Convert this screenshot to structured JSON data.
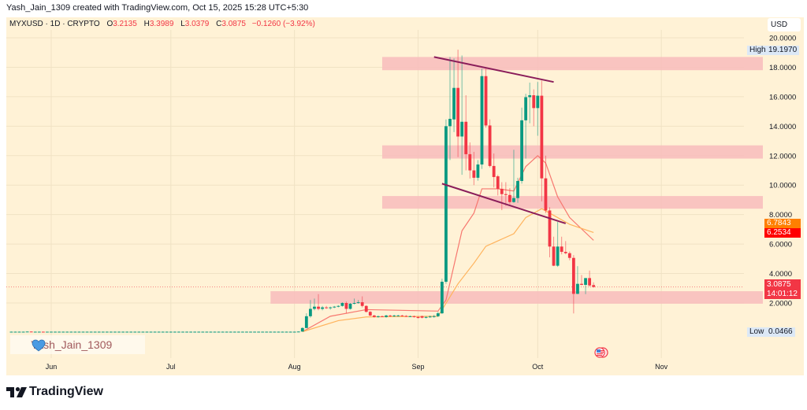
{
  "header": {
    "created_by": "Yash_Jain_1309 created with TradingView.com, Oct 15, 2025 15:28 UTC+5:30"
  },
  "legend": {
    "symbol": "MYXUSD · 1D · CRYPTO",
    "o_label": "O",
    "o": "3.2135",
    "h_label": "H",
    "h": "3.3989",
    "l_label": "L",
    "l": "3.0379",
    "c_label": "C",
    "c": "3.0875",
    "change": "−0.1260 (−3.92%)"
  },
  "axis": {
    "currency": "USD"
  },
  "badges": {
    "high_label": "High",
    "high_value": "19.1970",
    "low_label": "Low",
    "low_value": "0.0466",
    "ma_orange": "6.7843",
    "ma_red": "6.2534",
    "last_price": "3.0875",
    "countdown": "14:01:12"
  },
  "watermark": {
    "text": "Yash_Jain_1309",
    "icon": "blue-heart-icon"
  },
  "events_icon": "us-flag-icon",
  "brand": {
    "name": "TradingView"
  },
  "colors": {
    "bull": "#089981",
    "bear": "#f23645",
    "ma_fast": "#f7776f",
    "ma_slow": "#ffb35c",
    "zone": "#f8bcbc",
    "trendline": "#8a1d5a",
    "background": "#fff2d6"
  },
  "chart_data": {
    "type": "candlestick",
    "symbol": "MYXUSD",
    "interval": "1D",
    "ylim": [
      0,
      20.6
    ],
    "y_ticks": [
      "2.0000",
      "4.0000",
      "6.0000",
      "8.0000",
      "10.0000",
      "12.0000",
      "14.0000",
      "16.0000",
      "18.0000",
      "20.0000"
    ],
    "x_ticks": [
      {
        "label": "Jun",
        "date": "2025-06-01"
      },
      {
        "label": "Jul",
        "date": "2025-07-01"
      },
      {
        "label": "Aug",
        "date": "2025-08-01"
      },
      {
        "label": "Sep",
        "date": "2025-09-01"
      },
      {
        "label": "Oct",
        "date": "2025-10-01"
      },
      {
        "label": "Nov",
        "date": "2025-11-01"
      }
    ],
    "grid": true,
    "ohlc": [
      [
        "2025-05-22",
        0.05,
        0.06,
        0.04,
        0.05
      ],
      [
        "2025-05-23",
        0.05,
        0.06,
        0.04,
        0.05
      ],
      [
        "2025-05-24",
        0.05,
        0.06,
        0.05,
        0.05
      ],
      [
        "2025-05-25",
        0.05,
        0.06,
        0.04,
        0.05
      ],
      [
        "2025-05-26",
        0.05,
        0.06,
        0.04,
        0.06
      ],
      [
        "2025-05-27",
        0.06,
        0.07,
        0.05,
        0.05
      ],
      [
        "2025-05-28",
        0.05,
        0.06,
        0.04,
        0.05
      ],
      [
        "2025-05-29",
        0.05,
        0.06,
        0.04,
        0.05
      ],
      [
        "2025-05-30",
        0.05,
        0.06,
        0.04,
        0.04
      ],
      [
        "2025-05-31",
        0.04,
        0.05,
        0.04,
        0.05
      ],
      [
        "2025-06-01",
        0.05,
        0.06,
        0.04,
        0.05
      ],
      [
        "2025-06-02",
        0.05,
        0.06,
        0.04,
        0.05
      ],
      [
        "2025-06-03",
        0.05,
        0.06,
        0.04,
        0.05
      ],
      [
        "2025-06-04",
        0.05,
        0.06,
        0.05,
        0.05
      ],
      [
        "2025-06-05",
        0.05,
        0.06,
        0.04,
        0.05
      ],
      [
        "2025-06-06",
        0.05,
        0.06,
        0.04,
        0.05
      ],
      [
        "2025-06-07",
        0.05,
        0.06,
        0.04,
        0.05
      ],
      [
        "2025-06-08",
        0.05,
        0.06,
        0.04,
        0.05
      ],
      [
        "2025-06-09",
        0.05,
        0.06,
        0.04,
        0.05
      ],
      [
        "2025-06-10",
        0.05,
        0.06,
        0.04,
        0.05
      ],
      [
        "2025-06-11",
        0.05,
        0.06,
        0.04,
        0.05
      ],
      [
        "2025-06-12",
        0.05,
        0.06,
        0.04,
        0.05
      ],
      [
        "2025-06-13",
        0.05,
        0.06,
        0.04,
        0.05
      ],
      [
        "2025-06-14",
        0.05,
        0.06,
        0.04,
        0.05
      ],
      [
        "2025-06-15",
        0.05,
        0.06,
        0.04,
        0.05
      ],
      [
        "2025-06-16",
        0.05,
        0.06,
        0.04,
        0.05
      ],
      [
        "2025-06-17",
        0.05,
        0.06,
        0.04,
        0.05
      ],
      [
        "2025-06-18",
        0.05,
        0.06,
        0.04,
        0.05
      ],
      [
        "2025-06-19",
        0.05,
        0.06,
        0.04,
        0.05
      ],
      [
        "2025-06-20",
        0.05,
        0.06,
        0.04,
        0.05
      ],
      [
        "2025-06-21",
        0.05,
        0.06,
        0.04,
        0.05
      ],
      [
        "2025-06-22",
        0.05,
        0.06,
        0.04,
        0.05
      ],
      [
        "2025-06-23",
        0.05,
        0.06,
        0.04,
        0.05
      ],
      [
        "2025-06-24",
        0.05,
        0.06,
        0.04,
        0.05
      ],
      [
        "2025-06-25",
        0.05,
        0.06,
        0.04,
        0.05
      ],
      [
        "2025-06-26",
        0.05,
        0.06,
        0.04,
        0.05
      ],
      [
        "2025-06-27",
        0.05,
        0.06,
        0.04,
        0.05
      ],
      [
        "2025-06-28",
        0.05,
        0.06,
        0.04,
        0.05
      ],
      [
        "2025-06-29",
        0.05,
        0.06,
        0.04,
        0.05
      ],
      [
        "2025-06-30",
        0.05,
        0.06,
        0.04,
        0.05
      ],
      [
        "2025-07-01",
        0.05,
        0.06,
        0.04,
        0.05
      ],
      [
        "2025-07-02",
        0.05,
        0.06,
        0.04,
        0.05
      ],
      [
        "2025-07-03",
        0.05,
        0.06,
        0.04,
        0.05
      ],
      [
        "2025-07-04",
        0.05,
        0.06,
        0.04,
        0.05
      ],
      [
        "2025-07-05",
        0.05,
        0.06,
        0.04,
        0.05
      ],
      [
        "2025-07-06",
        0.05,
        0.06,
        0.04,
        0.05
      ],
      [
        "2025-07-07",
        0.05,
        0.06,
        0.04,
        0.05
      ],
      [
        "2025-07-08",
        0.05,
        0.06,
        0.04,
        0.05
      ],
      [
        "2025-07-09",
        0.05,
        0.06,
        0.04,
        0.05
      ],
      [
        "2025-07-10",
        0.05,
        0.06,
        0.04,
        0.05
      ],
      [
        "2025-07-11",
        0.05,
        0.06,
        0.04,
        0.05
      ],
      [
        "2025-07-12",
        0.05,
        0.06,
        0.04,
        0.05
      ],
      [
        "2025-07-13",
        0.05,
        0.06,
        0.04,
        0.05
      ],
      [
        "2025-07-14",
        0.05,
        0.06,
        0.04,
        0.05
      ],
      [
        "2025-07-15",
        0.05,
        0.06,
        0.04,
        0.05
      ],
      [
        "2025-07-16",
        0.05,
        0.06,
        0.04,
        0.05
      ],
      [
        "2025-07-17",
        0.05,
        0.06,
        0.04,
        0.05
      ],
      [
        "2025-07-18",
        0.05,
        0.06,
        0.04,
        0.05
      ],
      [
        "2025-07-19",
        0.05,
        0.06,
        0.04,
        0.05
      ],
      [
        "2025-07-20",
        0.05,
        0.06,
        0.04,
        0.05
      ],
      [
        "2025-07-21",
        0.05,
        0.06,
        0.04,
        0.05
      ],
      [
        "2025-07-22",
        0.05,
        0.06,
        0.04,
        0.05
      ],
      [
        "2025-07-23",
        0.05,
        0.06,
        0.04,
        0.05
      ],
      [
        "2025-07-24",
        0.05,
        0.06,
        0.04,
        0.05
      ],
      [
        "2025-07-25",
        0.05,
        0.06,
        0.04,
        0.05
      ],
      [
        "2025-07-26",
        0.05,
        0.06,
        0.04,
        0.05
      ],
      [
        "2025-07-27",
        0.05,
        0.06,
        0.04,
        0.05
      ],
      [
        "2025-07-28",
        0.05,
        0.06,
        0.04,
        0.05
      ],
      [
        "2025-07-29",
        0.05,
        0.06,
        0.04,
        0.05
      ],
      [
        "2025-07-30",
        0.05,
        0.06,
        0.04,
        0.05
      ],
      [
        "2025-07-31",
        0.05,
        0.06,
        0.04,
        0.05
      ],
      [
        "2025-08-01",
        0.05,
        0.06,
        0.04,
        0.05
      ],
      [
        "2025-08-02",
        0.05,
        0.07,
        0.05,
        0.06
      ],
      [
        "2025-08-03",
        0.06,
        0.35,
        0.05,
        0.3
      ],
      [
        "2025-08-04",
        0.3,
        1.3,
        0.3,
        1.1
      ],
      [
        "2025-08-05",
        1.1,
        2.2,
        1.0,
        1.6
      ],
      [
        "2025-08-06",
        1.6,
        2.3,
        1.5,
        1.75
      ],
      [
        "2025-08-07",
        1.75,
        2.6,
        1.5,
        1.6
      ],
      [
        "2025-08-08",
        1.6,
        1.8,
        1.5,
        1.7
      ],
      [
        "2025-08-09",
        1.7,
        1.8,
        1.6,
        1.65
      ],
      [
        "2025-08-10",
        1.65,
        1.75,
        1.55,
        1.7
      ],
      [
        "2025-08-11",
        1.7,
        1.8,
        1.65,
        1.75
      ],
      [
        "2025-08-12",
        1.75,
        1.85,
        1.7,
        1.8
      ],
      [
        "2025-08-13",
        1.8,
        2.05,
        1.75,
        2.0
      ],
      [
        "2025-08-14",
        2.0,
        2.1,
        1.3,
        1.6
      ],
      [
        "2025-08-15",
        1.6,
        2.0,
        1.55,
        1.95
      ],
      [
        "2025-08-16",
        1.95,
        2.3,
        1.9,
        2.0
      ],
      [
        "2025-08-17",
        2.0,
        2.2,
        1.95,
        2.05
      ],
      [
        "2025-08-18",
        2.05,
        2.45,
        1.7,
        1.8
      ],
      [
        "2025-08-19",
        1.8,
        1.85,
        1.35,
        1.4
      ],
      [
        "2025-08-20",
        1.4,
        1.45,
        1.1,
        1.15
      ],
      [
        "2025-08-21",
        1.15,
        1.2,
        1.0,
        1.05
      ],
      [
        "2025-08-22",
        1.05,
        1.15,
        1.0,
        1.1
      ],
      [
        "2025-08-23",
        1.1,
        1.15,
        1.05,
        1.05
      ],
      [
        "2025-08-24",
        1.05,
        1.2,
        1.0,
        1.15
      ],
      [
        "2025-08-25",
        1.15,
        1.2,
        1.05,
        1.1
      ],
      [
        "2025-08-26",
        1.1,
        1.2,
        1.05,
        1.15
      ],
      [
        "2025-08-27",
        1.15,
        1.2,
        1.1,
        1.15
      ],
      [
        "2025-08-28",
        1.15,
        1.2,
        1.1,
        1.12
      ],
      [
        "2025-08-29",
        1.12,
        1.18,
        1.05,
        1.1
      ],
      [
        "2025-08-30",
        1.1,
        1.15,
        1.05,
        1.1
      ],
      [
        "2025-08-31",
        1.1,
        1.15,
        1.0,
        1.05
      ],
      [
        "2025-09-01",
        1.05,
        1.1,
        0.95,
        0.98
      ],
      [
        "2025-09-02",
        1.1,
        1.15,
        0.95,
        1.0
      ],
      [
        "2025-09-03",
        1.0,
        1.1,
        0.95,
        1.05
      ],
      [
        "2025-09-04",
        1.05,
        1.15,
        1.0,
        1.08
      ],
      [
        "2025-09-05",
        1.08,
        1.2,
        1.0,
        1.1
      ],
      [
        "2025-09-06",
        1.1,
        1.4,
        1.05,
        1.3
      ],
      [
        "2025-09-07",
        1.3,
        3.65,
        1.25,
        3.44
      ],
      [
        "2025-09-08",
        3.44,
        14.46,
        3.3,
        14.0
      ],
      [
        "2025-09-09",
        14.0,
        18.7,
        11.7,
        14.5
      ],
      [
        "2025-09-10",
        14.46,
        18.6,
        13.6,
        16.6
      ],
      [
        "2025-09-11",
        16.6,
        19.197,
        11.9,
        13.3
      ],
      [
        "2025-09-12",
        13.3,
        18.8,
        10.7,
        14.3
      ],
      [
        "2025-09-13",
        14.3,
        16.1,
        11.0,
        12.1
      ],
      [
        "2025-09-14",
        12.1,
        12.9,
        10.45,
        11.0
      ],
      [
        "2025-09-15",
        11.0,
        12.26,
        10.0,
        10.5
      ],
      [
        "2025-09-16",
        10.5,
        11.7,
        10.3,
        11.4
      ],
      [
        "2025-09-17",
        11.4,
        17.9,
        11.1,
        17.4
      ],
      [
        "2025-09-18",
        17.4,
        17.9,
        13.9,
        14.05
      ],
      [
        "2025-09-19",
        14.05,
        14.46,
        11.2,
        11.3
      ],
      [
        "2025-09-20",
        11.3,
        12.15,
        9.84,
        10.55
      ],
      [
        "2025-09-21",
        10.6,
        10.7,
        9.3,
        9.75
      ],
      [
        "2025-09-22",
        9.75,
        10.2,
        8.3,
        9.39
      ],
      [
        "2025-09-23",
        9.39,
        10.2,
        8.6,
        9.33
      ],
      [
        "2025-09-24",
        9.33,
        9.8,
        8.7,
        8.85
      ],
      [
        "2025-09-25",
        8.85,
        12.4,
        8.8,
        9.12
      ],
      [
        "2025-09-26",
        9.12,
        10.5,
        8.8,
        10.28
      ],
      [
        "2025-09-27",
        10.28,
        15.26,
        10.1,
        14.4
      ],
      [
        "2025-09-28",
        14.4,
        16.2,
        11.8,
        15.97
      ],
      [
        "2025-09-29",
        15.97,
        16.96,
        14.2,
        16.1
      ],
      [
        "2025-09-30",
        16.1,
        16.5,
        14.0,
        15.23
      ],
      [
        "2025-10-01",
        15.23,
        17.0,
        13.35,
        16.07
      ],
      [
        "2025-10-02",
        16.07,
        17.1,
        8.9,
        10.46
      ],
      [
        "2025-10-03",
        10.46,
        12.0,
        8.1,
        8.28
      ],
      [
        "2025-10-04",
        8.28,
        8.5,
        5.1,
        5.83
      ],
      [
        "2025-10-05",
        5.83,
        6.5,
        4.5,
        4.53
      ],
      [
        "2025-10-06",
        4.53,
        7.5,
        4.45,
        5.83
      ],
      [
        "2025-10-07",
        5.83,
        6.5,
        5.3,
        5.47
      ],
      [
        "2025-10-08",
        5.47,
        6.2,
        5.3,
        5.38
      ],
      [
        "2025-10-09",
        5.38,
        5.5,
        4.9,
        5.06
      ],
      [
        "2025-10-10",
        5.06,
        5.25,
        1.29,
        2.62
      ],
      [
        "2025-10-11",
        2.62,
        4.5,
        2.6,
        3.3
      ],
      [
        "2025-10-12",
        3.3,
        3.9,
        3.2,
        3.23
      ],
      [
        "2025-10-13",
        3.23,
        3.69,
        2.6,
        3.69
      ],
      [
        "2025-10-14",
        3.69,
        4.2,
        3.1,
        3.19
      ],
      [
        "2025-10-15",
        3.2135,
        3.3989,
        3.0379,
        3.0875
      ]
    ],
    "moving_averages": [
      {
        "color": "#f7776f",
        "last": 6.2534,
        "points": [
          [
            "2025-08-03",
            0.05
          ],
          [
            "2025-08-10",
            1.1
          ],
          [
            "2025-08-19",
            1.55
          ],
          [
            "2025-09-06",
            1.45
          ],
          [
            "2025-09-08",
            2.2
          ],
          [
            "2025-09-12",
            6.9
          ],
          [
            "2025-09-15",
            8.1
          ],
          [
            "2025-09-17",
            9.75
          ],
          [
            "2025-09-21",
            9.75
          ],
          [
            "2025-09-25",
            9.6
          ],
          [
            "2025-09-28",
            11.26
          ],
          [
            "2025-10-01",
            12.0
          ],
          [
            "2025-10-03",
            11.5
          ],
          [
            "2025-10-06",
            9.2
          ],
          [
            "2025-10-09",
            7.8
          ],
          [
            "2025-10-15",
            6.2534
          ]
        ]
      },
      {
        "color": "#ffb35c",
        "last": 6.7843,
        "points": [
          [
            "2025-08-03",
            0.05
          ],
          [
            "2025-08-12",
            0.8
          ],
          [
            "2025-08-19",
            1.05
          ],
          [
            "2025-09-06",
            1.1
          ],
          [
            "2025-09-11",
            3.3
          ],
          [
            "2025-09-15",
            4.7
          ],
          [
            "2025-09-18",
            5.85
          ],
          [
            "2025-09-25",
            6.7
          ],
          [
            "2025-09-28",
            7.8
          ],
          [
            "2025-10-02",
            8.4
          ],
          [
            "2025-10-04",
            8.1
          ],
          [
            "2025-10-09",
            7.34
          ],
          [
            "2025-10-15",
            6.7843
          ]
        ]
      }
    ],
    "zones": [
      {
        "from": "2025-08-23",
        "low": 17.8,
        "high": 18.7
      },
      {
        "from": "2025-08-23",
        "low": 11.8,
        "high": 12.7
      },
      {
        "from": "2025-08-23",
        "low": 8.4,
        "high": 9.26
      },
      {
        "from": "2025-07-26",
        "low": 1.95,
        "high": 2.8
      }
    ],
    "trendlines": [
      {
        "from": [
          "2025-09-05",
          18.7
        ],
        "to": [
          "2025-10-05",
          17.0
        ]
      },
      {
        "from": [
          "2025-09-07",
          10.1
        ],
        "to": [
          "2025-10-08",
          7.4
        ]
      }
    ],
    "last_price": 3.0875,
    "high": 19.197,
    "low": 0.0466
  }
}
